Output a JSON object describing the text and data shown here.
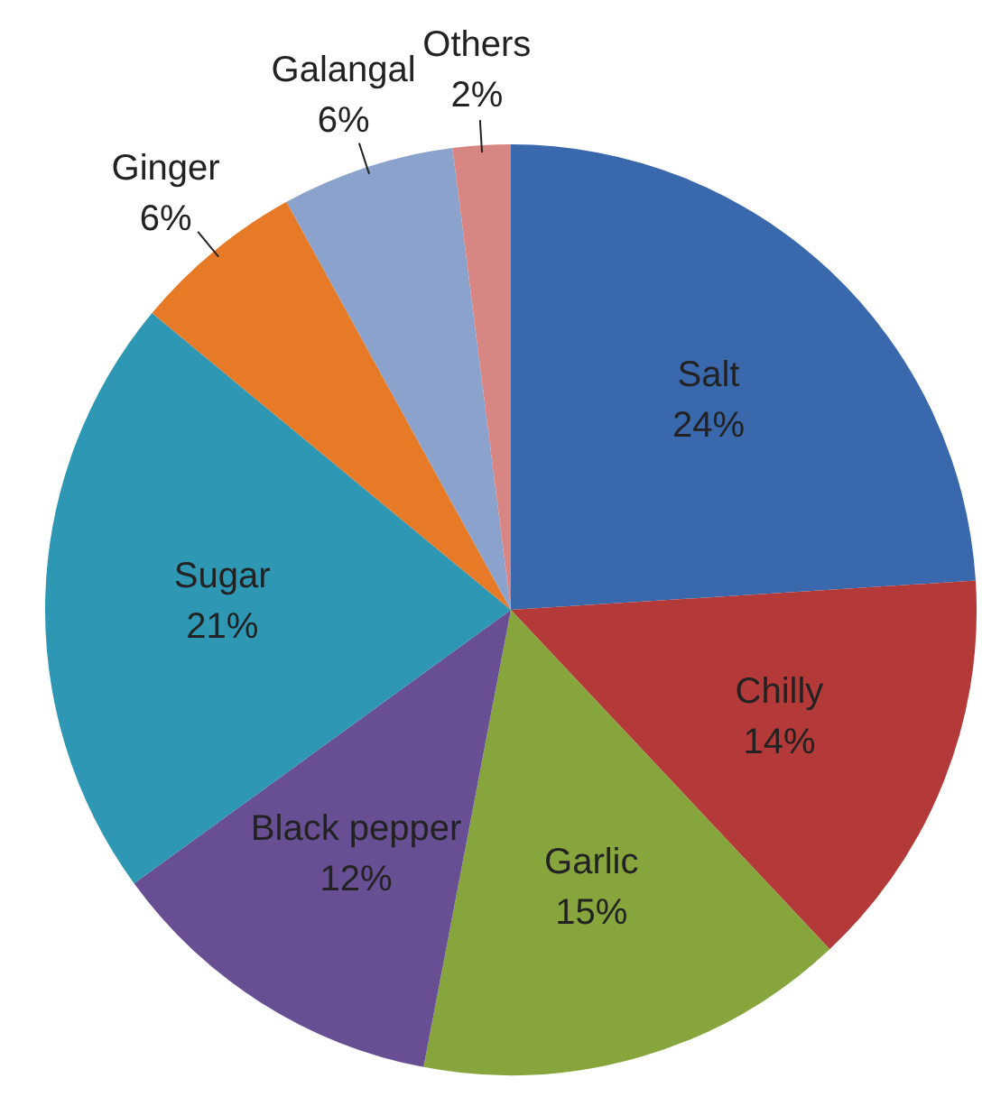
{
  "chart_data": {
    "type": "pie",
    "categories": [
      "Salt",
      "Chilly",
      "Garlic",
      "Black pepper",
      "Sugar",
      "Ginger",
      "Galangal",
      "Others"
    ],
    "values": [
      24,
      14,
      15,
      12,
      21,
      6,
      6,
      2
    ],
    "value_labels": [
      "24%",
      "14%",
      "15%",
      "12%",
      "21%",
      "6%",
      "6%",
      "2%"
    ],
    "colors": [
      "#3a68ad",
      "#b33a38",
      "#86a53c",
      "#684e92",
      "#2e97b4",
      "#e67a26",
      "#8aa2cc",
      "#d88683"
    ],
    "legend": false
  }
}
